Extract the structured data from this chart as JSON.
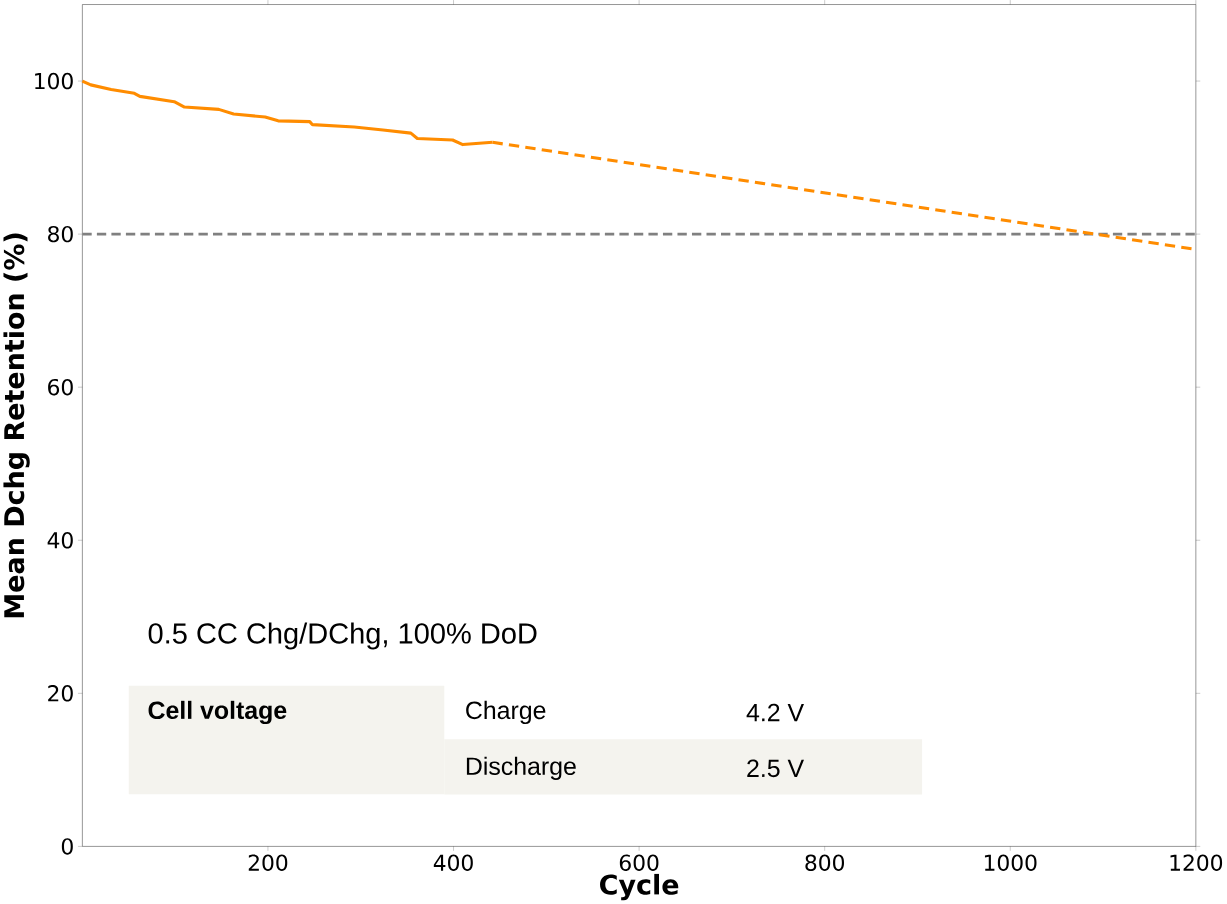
{
  "chart_data": {
    "type": "line",
    "xlabel": "Cycle",
    "ylabel": "Mean Dchg Retention (%)",
    "xlim": [
      0,
      1200
    ],
    "xticks": [
      200,
      400,
      600,
      800,
      1000,
      1200
    ],
    "ylim": [
      0,
      110
    ],
    "yticks": [
      0,
      20,
      40,
      60,
      80,
      100
    ],
    "grid": false,
    "series": [
      {
        "color": "#ff8c00",
        "line_style": "solid",
        "x": [
          0,
          9,
          31,
          56,
          62,
          99,
          110,
          147,
          163,
          197,
          211,
          245,
          248,
          293,
          324,
          354,
          361,
          399,
          410,
          442
        ],
        "values": [
          100,
          99.5,
          98.9,
          98.4,
          98.0,
          97.3,
          96.6,
          96.3,
          95.7,
          95.3,
          94.8,
          94.7,
          94.3,
          94.0,
          93.6,
          93.2,
          92.5,
          92.3,
          91.7,
          92.0
        ]
      },
      {
        "color": "#ff8c00",
        "line_style": "dashed",
        "x": [
          442,
          1200
        ],
        "values": [
          92.0,
          78.0
        ]
      }
    ],
    "ref_lines": [
      {
        "axis": "y",
        "value": 80,
        "color": "#808080",
        "line_style": "dashed"
      }
    ],
    "annotations": [
      "0.5 CC Chg/DChg, 100% DoD",
      "Cell voltage",
      "Charge",
      "4.2 V",
      "Discharge",
      "2.5 V"
    ]
  }
}
